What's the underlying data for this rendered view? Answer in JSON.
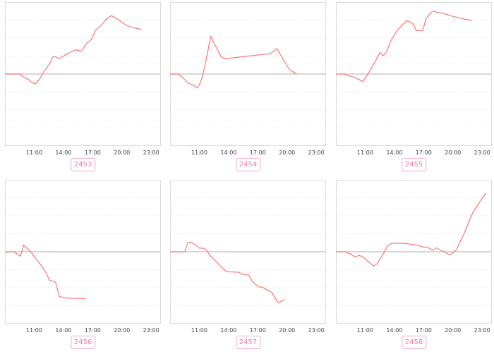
{
  "chart_data": [
    {
      "type": "line",
      "label": "2453",
      "xlim": [
        "08:00",
        "24:00"
      ],
      "ylim": [
        -4,
        4
      ],
      "grid": true,
      "xticks": [
        "11:00",
        "14:00",
        "17:00",
        "20:00",
        "23:00"
      ],
      "x": [
        8.0,
        9.55,
        9.9,
        10.4,
        10.76,
        11.13,
        11.6,
        11.98,
        12.58,
        12.87,
        13.14,
        13.6,
        14.16,
        14.76,
        15.25,
        15.85,
        16.27,
        16.9,
        17.3,
        17.96,
        18.35,
        18.93,
        19.6,
        20.34,
        20.95,
        21.99
      ],
      "y": [
        0,
        0,
        -0.17,
        -0.3,
        -0.46,
        -0.55,
        -0.24,
        0.13,
        0.56,
        0.93,
        0.97,
        0.85,
        1.05,
        1.22,
        1.35,
        1.27,
        1.63,
        1.95,
        2.44,
        2.75,
        3.03,
        3.25,
        3.03,
        2.75,
        2.61,
        2.48
      ]
    },
    {
      "type": "line",
      "label": "2454",
      "xlim": [
        "08:00",
        "24:00"
      ],
      "ylim": [
        -4,
        4
      ],
      "grid": true,
      "xticks": [
        "11:00",
        "14:00",
        "17:00",
        "20:00",
        "23:00"
      ],
      "x": [
        8.0,
        8.85,
        9.38,
        9.87,
        10.35,
        10.79,
        11.13,
        11.52,
        12.17,
        12.65,
        13.26,
        13.62,
        18.3,
        18.96,
        19.61,
        20.29,
        21.02
      ],
      "y": [
        0,
        0,
        -0.24,
        -0.51,
        -0.61,
        -0.78,
        -0.46,
        0.3,
        2.09,
        1.57,
        0.95,
        0.85,
        1.14,
        1.41,
        0.82,
        0.22,
        0
      ]
    },
    {
      "type": "line",
      "label": "2455",
      "xlim": [
        "08:00",
        "24:00"
      ],
      "ylim": [
        -4,
        4
      ],
      "grid": true,
      "xticks": [
        "11:00",
        "14:00",
        "17:00",
        "20:00",
        "23:00"
      ],
      "x": [
        8.0,
        8.85,
        9.5,
        9.82,
        10.79,
        11.52,
        12.17,
        12.53,
        12.85,
        13.21,
        13.62,
        14.28,
        15.27,
        15.88,
        16.24,
        16.9,
        17.26,
        17.92,
        18.35,
        18.96,
        20.05,
        21.02,
        21.99
      ],
      "y": [
        0,
        0,
        -0.13,
        -0.17,
        -0.42,
        0.2,
        0.85,
        1.2,
        1.02,
        1.24,
        1.83,
        2.44,
        2.97,
        2.81,
        2.42,
        2.42,
        3.1,
        3.5,
        3.44,
        3.38,
        3.2,
        3.07,
        2.98
      ]
    },
    {
      "type": "line",
      "label": "2456",
      "xlim": [
        "08:00",
        "24:00"
      ],
      "ylim": [
        -4,
        4
      ],
      "grid": true,
      "xticks": [
        "11:00",
        "14:00",
        "17:00",
        "20:00",
        "23:00"
      ],
      "x": [
        8.0,
        8.92,
        9.6,
        9.91,
        10.76,
        11.1,
        11.58,
        12.14,
        12.55,
        13.18,
        13.59,
        14.2,
        16.26
      ],
      "y": [
        0,
        0,
        -0.25,
        0.37,
        -0.07,
        -0.36,
        -0.66,
        -1.08,
        -1.57,
        -1.68,
        -2.49,
        -2.57,
        -2.61
      ]
    },
    {
      "type": "line",
      "label": "2457",
      "xlim": [
        "08:00",
        "24:00"
      ],
      "ylim": [
        -4,
        4
      ],
      "grid": true,
      "xticks": [
        "11:00",
        "14:00",
        "17:00",
        "20:00",
        "23:00"
      ],
      "x": [
        8.0,
        9.52,
        9.8,
        10.09,
        10.64,
        11.0,
        11.36,
        11.72,
        12.08,
        13.75,
        15.07,
        15.43,
        16.08,
        16.46,
        17.11,
        17.42,
        18.43,
        19.08,
        19.73
      ],
      "y": [
        0,
        0,
        0.5,
        0.54,
        0.37,
        0.2,
        0.2,
        0.11,
        -0.2,
        -1.11,
        -1.14,
        -1.25,
        -1.3,
        -1.67,
        -1.96,
        -1.96,
        -2.26,
        -2.83,
        -2.66
      ]
    },
    {
      "type": "line",
      "label": "2458",
      "xlim": [
        "08:00",
        "24:00"
      ],
      "ylim": [
        -4,
        4
      ],
      "grid": true,
      "xticks": [
        "11:00",
        "14:00",
        "17:00",
        "20:00",
        "23:00"
      ],
      "x": [
        8.0,
        8.94,
        9.62,
        9.96,
        10.4,
        10.76,
        11.24,
        11.85,
        12.21,
        12.86,
        13.3,
        13.73,
        14.86,
        15.71,
        16.31,
        16.92,
        17.35,
        17.93,
        18.31,
        19.04,
        19.69,
        20.34,
        21.21,
        21.98,
        22.76,
        23.38
      ],
      "y": [
        0,
        0,
        -0.16,
        -0.29,
        -0.2,
        -0.29,
        -0.51,
        -0.79,
        -0.68,
        -0.12,
        0.33,
        0.47,
        0.47,
        0.42,
        0.37,
        0.26,
        0.26,
        0.09,
        0.22,
        0.01,
        -0.18,
        0.09,
        1.09,
        2.12,
        2.78,
        3.26
      ]
    }
  ],
  "colors": {
    "line": "#ff7373",
    "baseline": "#bdbdbd",
    "grid": "#ececec",
    "frame": "#dcdcdc",
    "badge": "#f07ba2"
  }
}
